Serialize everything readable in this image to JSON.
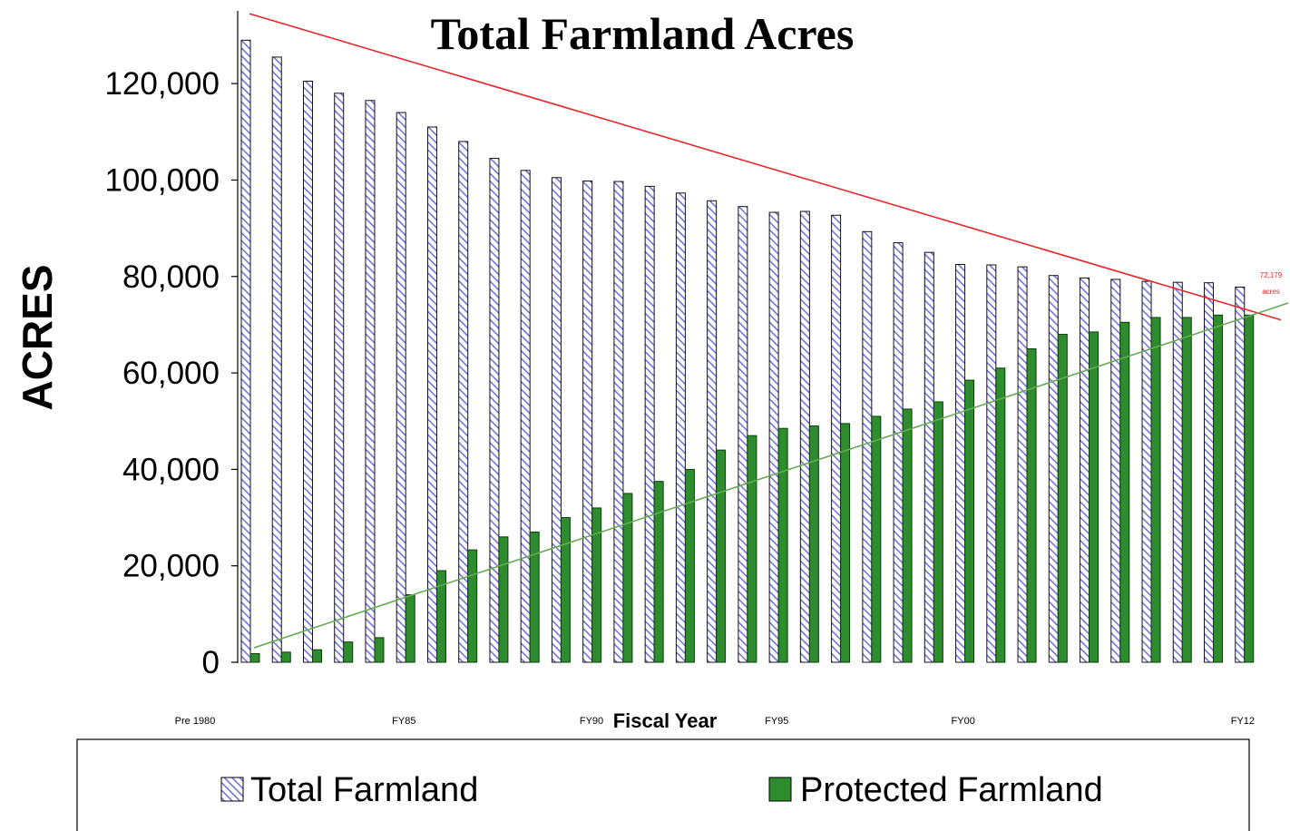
{
  "chart_data": {
    "type": "bar",
    "title": "Total Farmland Acres",
    "xlabel": "Fiscal Year",
    "ylabel": "ACRES",
    "ylim": [
      0,
      130000
    ],
    "yticks": [
      0,
      20000,
      40000,
      60000,
      80000,
      100000,
      120000
    ],
    "ytick_labels": [
      "0",
      "20,000",
      "40,000",
      "60,000",
      "80,000",
      "100,000",
      "120,000"
    ],
    "xtick_labels": [
      {
        "index": 0,
        "label": "Pre 1980"
      },
      {
        "index": 5,
        "label": "FY85"
      },
      {
        "index": 11,
        "label": "FY90"
      },
      {
        "index": 17,
        "label": "FY95"
      },
      {
        "index": 23,
        "label": "FY00"
      },
      {
        "index": 32,
        "label": "FY12"
      }
    ],
    "categories": [
      "Pre 1980",
      "",
      "",
      "",
      "",
      "FY85",
      "",
      "",
      "",
      "",
      "",
      "FY90",
      "",
      "",
      "",
      "",
      "",
      "FY95",
      "",
      "",
      "",
      "",
      "",
      "FY00",
      "",
      "",
      "",
      "",
      "",
      "",
      "",
      "",
      "FY12"
    ],
    "series": [
      {
        "name": "Total Farmland",
        "color": "#7b7bdc",
        "pattern": "diagonal-hatch",
        "values": [
          129000,
          125500,
          120500,
          118000,
          116500,
          114000,
          111000,
          108000,
          104500,
          102000,
          100500,
          99800,
          99700,
          98700,
          97300,
          95700,
          94500,
          93300,
          93500,
          92700,
          89300,
          87000,
          85000,
          82500,
          82400,
          82000,
          80200,
          79700,
          79400,
          79000,
          78800,
          78700,
          77800
        ]
      },
      {
        "name": "Protected Farmland",
        "color": "#2e8b2e",
        "values": [
          1800,
          2100,
          2600,
          4200,
          5100,
          14000,
          19000,
          23300,
          26000,
          27000,
          30000,
          32000,
          35000,
          37500,
          40000,
          44000,
          47000,
          48500,
          49000,
          49500,
          51000,
          52500,
          54000,
          58500,
          61000,
          65000,
          68000,
          68500,
          70500,
          71500,
          71500,
          72000,
          72000
        ]
      }
    ],
    "trendlines": [
      {
        "series": "Total Farmland",
        "color": "#e8262a",
        "start_value": 134500,
        "end_value": 71000
      },
      {
        "series": "Protected Farmland",
        "color": "#66aa55",
        "start_value": 3000,
        "end_value": 74500
      }
    ],
    "annotation": {
      "text": [
        "72,179",
        "acres"
      ],
      "color": "#e8262a"
    },
    "legend": {
      "position": "bottom",
      "items": [
        "Total Farmland",
        "Protected Farmland"
      ]
    },
    "grid": false
  }
}
